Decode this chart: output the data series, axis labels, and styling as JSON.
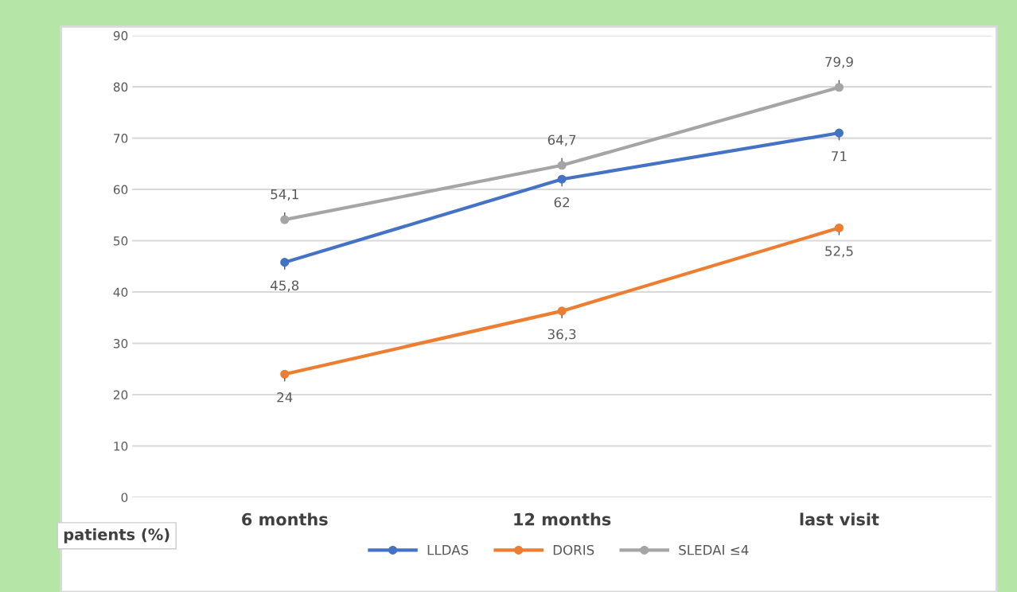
{
  "chart_data": {
    "type": "line",
    "ylabel": "patients (%)",
    "categories": [
      "6 months",
      "12 months",
      "last visit"
    ],
    "series": [
      {
        "name": "LLDAS",
        "color": "#4472c4",
        "values": [
          45.8,
          62,
          71
        ],
        "value_labels": [
          "45,8",
          "62",
          "71"
        ]
      },
      {
        "name": "DORIS",
        "color": "#ed7d31",
        "values": [
          24,
          36.3,
          52.5
        ],
        "value_labels": [
          "24",
          "36,3",
          "52,5"
        ]
      },
      {
        "name": "SLEDAI ≤4",
        "color": "#a5a5a5",
        "values": [
          54.1,
          64.7,
          79.9
        ],
        "value_labels": [
          "54,1",
          "64,7",
          "79,9"
        ]
      }
    ],
    "ylim": [
      0,
      90
    ],
    "yticks": [
      0,
      10,
      20,
      30,
      40,
      50,
      60,
      70,
      80,
      90
    ],
    "grid": "y",
    "legend": "bottom",
    "marker": "circle",
    "line_style": "solid"
  }
}
